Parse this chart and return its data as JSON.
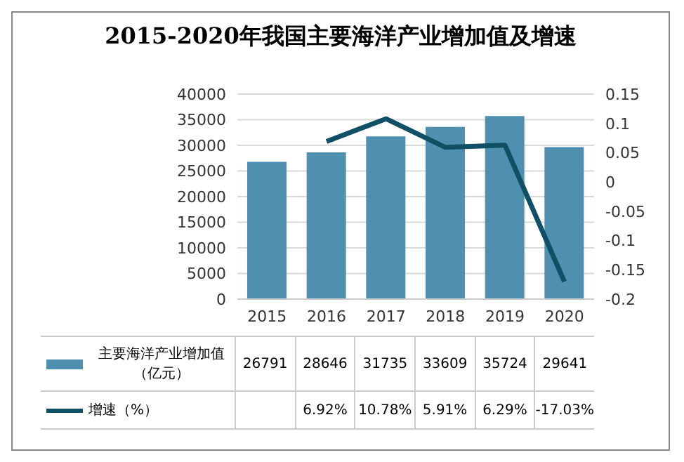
{
  "chart_data": {
    "type": "bar",
    "title": "2015-2020年我国主要海洋产业增加值及增速",
    "categories": [
      "2015",
      "2016",
      "2017",
      "2018",
      "2019",
      "2020"
    ],
    "series": [
      {
        "name": "主要海洋产业增加值（亿元）",
        "color": "#4f8fb0",
        "values": [
          26791,
          28646,
          31735,
          33609,
          35724,
          29641
        ]
      },
      {
        "name": "增速（%）",
        "type": "line",
        "axis": "y2",
        "color": "#0f5066",
        "values": [
          null,
          0.0692,
          0.1078,
          0.0591,
          0.0629,
          -0.1703
        ],
        "value_labels": [
          null,
          "6.92%",
          "10.78%",
          "5.91%",
          "6.29%",
          "-17.03%"
        ]
      }
    ],
    "ylim": [
      0,
      40000
    ],
    "yticks": [
      0,
      5000,
      10000,
      15000,
      20000,
      25000,
      30000,
      35000,
      40000
    ],
    "y2lim": [
      -0.2,
      0.15
    ],
    "y2ticks": [
      -0.2,
      -0.15,
      -0.1,
      -0.05,
      0,
      0.05,
      0.1,
      0.15
    ],
    "grid": "y",
    "legend": "bottom",
    "data_labels": true,
    "marker": "none"
  }
}
